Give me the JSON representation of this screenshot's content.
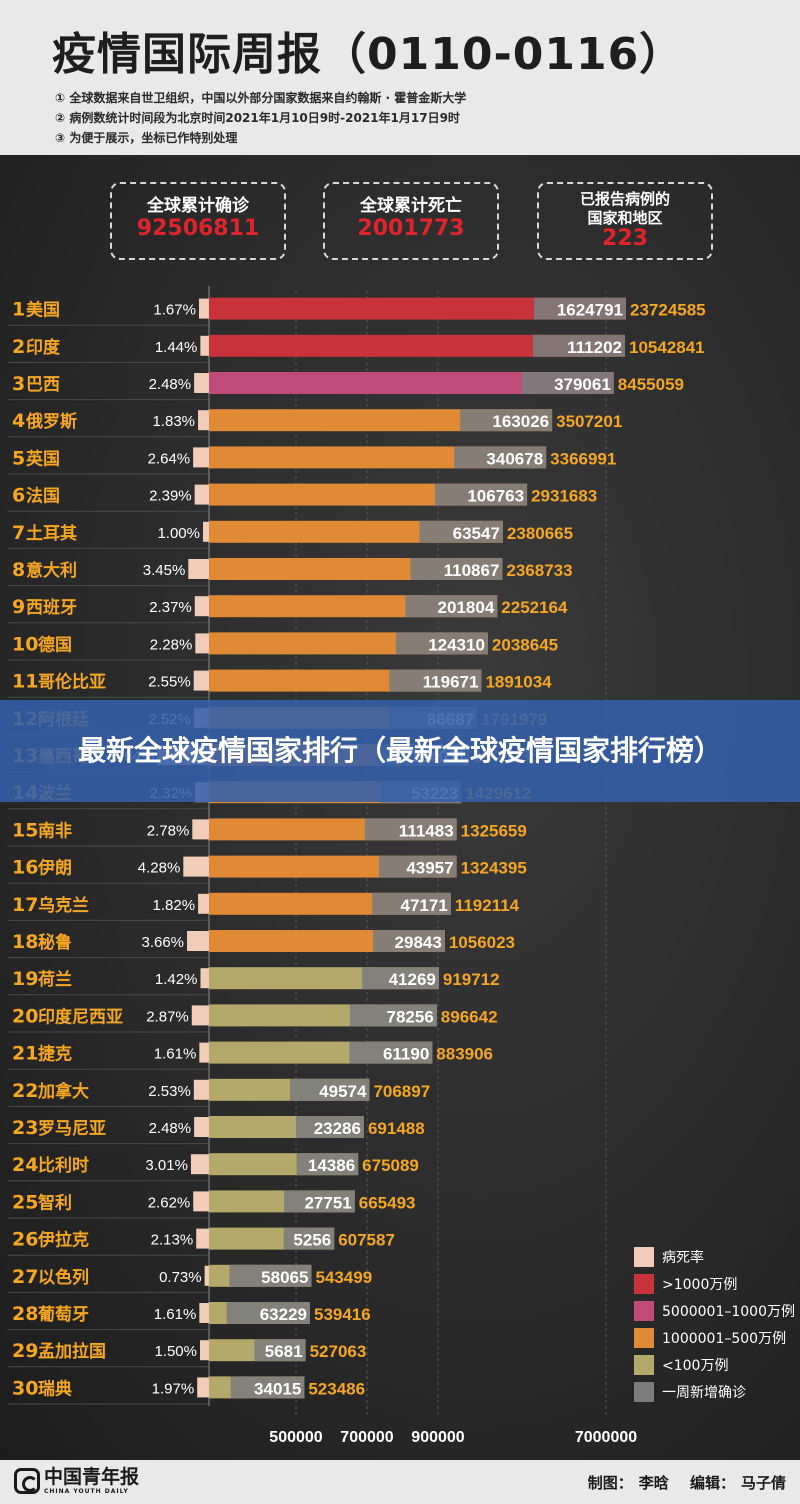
{
  "header": {
    "title": "疫情国际周报（0110-0116）",
    "notes": [
      "① 全球数据来自世卫组织，中国以外部分国家数据来自约翰斯 · 霍普金斯大学",
      "② 病例数统计时间段为北京时间2021年1月10日9时-2021年1月17日9时",
      "③ 为便于展示，坐标已作特别处理"
    ]
  },
  "summary": [
    {
      "label": "全球累计确诊",
      "value": "92506811"
    },
    {
      "label": "全球累计死亡",
      "value": "2001773"
    },
    {
      "label": "已报告病例的国家和地区",
      "label_lines": [
        "已报告病例的",
        "国家和地区"
      ],
      "value": "223"
    }
  ],
  "colors": {
    "over_10m": "#c8323b",
    "m5_10": "#c04a78",
    "m1_5": "#e08a36",
    "under_1m": "#b4a96a",
    "weekly": "#7c7c7c",
    "death_rate": "#f1cdb9",
    "totals_text": "#f5a623"
  },
  "banner": {
    "text": "最新全球疫情国家排行（最新全球疫情国家排行榜）"
  },
  "legend": [
    {
      "label": "病死率",
      "color_key": "death_rate"
    },
    {
      "label": ">1000万例",
      "color_key": "over_10m"
    },
    {
      "label": "5000001–1000万例",
      "color_key": "m5_10"
    },
    {
      "label": "1000001–500万例",
      "color_key": "m1_5"
    },
    {
      "label": "<100万例",
      "color_key": "under_1m"
    },
    {
      "label": "一周新增确诊",
      "color_key": "weekly"
    }
  ],
  "chart_data": {
    "type": "bar",
    "orientation": "horizontal",
    "axis_ticks": [
      "500000",
      "700000",
      "900000",
      "7000000"
    ],
    "scale": "non-linear (coordinates specially processed)",
    "rows": [
      {
        "rank": "1",
        "country": "美国",
        "rate": "1.67%",
        "weekly": "1624791",
        "total": "23724585",
        "category": "over_10m"
      },
      {
        "rank": "2",
        "country": "印度",
        "rate": "1.44%",
        "weekly": "111202",
        "total": "10542841",
        "category": "over_10m"
      },
      {
        "rank": "3",
        "country": "巴西",
        "rate": "2.48%",
        "weekly": "379061",
        "total": "8455059",
        "category": "m5_10"
      },
      {
        "rank": "4",
        "country": "俄罗斯",
        "rate": "1.83%",
        "weekly": "163026",
        "total": "3507201",
        "category": "m1_5"
      },
      {
        "rank": "5",
        "country": "英国",
        "rate": "2.64%",
        "weekly": "340678",
        "total": "3366991",
        "category": "m1_5"
      },
      {
        "rank": "6",
        "country": "法国",
        "rate": "2.39%",
        "weekly": "106763",
        "total": "2931683",
        "category": "m1_5"
      },
      {
        "rank": "7",
        "country": "土耳其",
        "rate": "1.00%",
        "weekly": "63547",
        "total": "2380665",
        "category": "m1_5"
      },
      {
        "rank": "8",
        "country": "意大利",
        "rate": "3.45%",
        "weekly": "110867",
        "total": "2368733",
        "category": "m1_5"
      },
      {
        "rank": "9",
        "country": "西班牙",
        "rate": "2.37%",
        "weekly": "201804",
        "total": "2252164",
        "category": "m1_5"
      },
      {
        "rank": "10",
        "country": "德国",
        "rate": "2.28%",
        "weekly": "124310",
        "total": "2038645",
        "category": "m1_5"
      },
      {
        "rank": "11",
        "country": "哥伦比亚",
        "rate": "2.55%",
        "weekly": "119671",
        "total": "1891034",
        "category": "m1_5"
      },
      {
        "rank": "12",
        "country": "阿根廷",
        "rate": "2.52%",
        "weekly": "86687",
        "total": "1791979",
        "category": "m1_5"
      },
      {
        "rank": "13",
        "country": "墨西哥",
        "rate": "8.64%",
        "weekly": "104011",
        "total": "1609735",
        "category": "m1_5"
      },
      {
        "rank": "14",
        "country": "波兰",
        "rate": "2.32%",
        "weekly": "53223",
        "total": "1429612",
        "category": "m1_5"
      },
      {
        "rank": "15",
        "country": "南非",
        "rate": "2.78%",
        "weekly": "111483",
        "total": "1325659",
        "category": "m1_5"
      },
      {
        "rank": "16",
        "country": "伊朗",
        "rate": "4.28%",
        "weekly": "43957",
        "total": "1324395",
        "category": "m1_5"
      },
      {
        "rank": "17",
        "country": "乌克兰",
        "rate": "1.82%",
        "weekly": "47171",
        "total": "1192114",
        "category": "m1_5"
      },
      {
        "rank": "18",
        "country": "秘鲁",
        "rate": "3.66%",
        "weekly": "29843",
        "total": "1056023",
        "category": "m1_5"
      },
      {
        "rank": "19",
        "country": "荷兰",
        "rate": "1.42%",
        "weekly": "41269",
        "total": "919712",
        "category": "under_1m"
      },
      {
        "rank": "20",
        "country": "印度尼西亚",
        "rate": "2.87%",
        "weekly": "78256",
        "total": "896642",
        "category": "under_1m"
      },
      {
        "rank": "21",
        "country": "捷克",
        "rate": "1.61%",
        "weekly": "61190",
        "total": "883906",
        "category": "under_1m"
      },
      {
        "rank": "22",
        "country": "加拿大",
        "rate": "2.53%",
        "weekly": "49574",
        "total": "706897",
        "category": "under_1m"
      },
      {
        "rank": "23",
        "country": "罗马尼亚",
        "rate": "2.48%",
        "weekly": "23286",
        "total": "691488",
        "category": "under_1m"
      },
      {
        "rank": "24",
        "country": "比利时",
        "rate": "3.01%",
        "weekly": "14386",
        "total": "675089",
        "category": "under_1m"
      },
      {
        "rank": "25",
        "country": "智利",
        "rate": "2.62%",
        "weekly": "27751",
        "total": "665493",
        "category": "under_1m"
      },
      {
        "rank": "26",
        "country": "伊拉克",
        "rate": "2.13%",
        "weekly": "5256",
        "total": "607587",
        "category": "under_1m"
      },
      {
        "rank": "27",
        "country": "以色列",
        "rate": "0.73%",
        "weekly": "58065",
        "total": "543499",
        "category": "under_1m"
      },
      {
        "rank": "28",
        "country": "葡萄牙",
        "rate": "1.61%",
        "weekly": "63229",
        "total": "539416",
        "category": "under_1m"
      },
      {
        "rank": "29",
        "country": "孟加拉国",
        "rate": "1.50%",
        "weekly": "5681",
        "total": "527063",
        "category": "under_1m"
      },
      {
        "rank": "30",
        "country": "瑞典",
        "rate": "1.97%",
        "weekly": "34015",
        "total": "523486",
        "category": "under_1m"
      }
    ]
  },
  "footer": {
    "logo_text": "中国青年报",
    "logo_sub": "CHINA YOUTH DAILY",
    "maker_label": "制图：",
    "maker_name": "李晗",
    "editor_label": "编辑：",
    "editor_name": "马子倩"
  }
}
